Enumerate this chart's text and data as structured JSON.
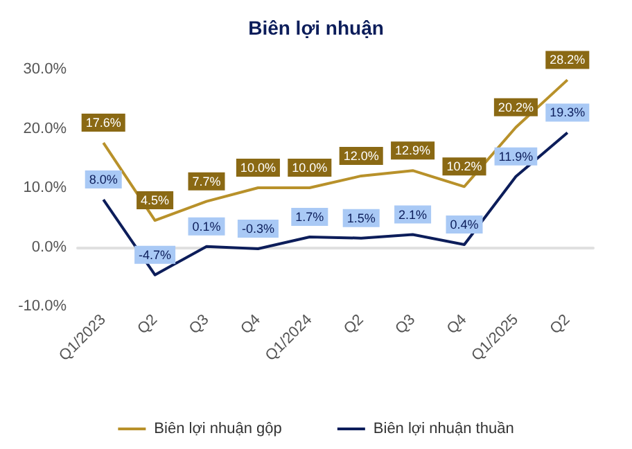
{
  "chart_data": {
    "type": "line",
    "title": "Biên lợi nhuận",
    "categories": [
      "Q1/2023",
      "Q2",
      "Q3",
      "Q4",
      "Q1/2024",
      "Q2",
      "Q3",
      "Q4",
      "Q1/2025",
      "Q2"
    ],
    "series": [
      {
        "name": "Biên lợi nhuận gộp",
        "color": "#b8912a",
        "values": [
          17.6,
          4.5,
          7.7,
          10.0,
          10.0,
          12.0,
          12.9,
          10.2,
          20.2,
          28.2
        ],
        "value_labels": [
          "17.6%",
          "4.5%",
          "7.7%",
          "10.0%",
          "10.0%",
          "12.0%",
          "12.9%",
          "10.2%",
          "20.2%",
          "28.2%"
        ]
      },
      {
        "name": "Biên lợi nhuận thuần",
        "color": "#0c1d5a",
        "values": [
          8.0,
          -4.7,
          0.1,
          -0.3,
          1.7,
          1.5,
          2.1,
          0.4,
          11.9,
          19.3
        ],
        "value_labels": [
          "8.0%",
          "-4.7%",
          "0.1%",
          "-0.3%",
          "1.7%",
          "1.5%",
          "2.1%",
          "0.4%",
          "11.9%",
          "19.3%"
        ]
      }
    ],
    "ylim": [
      -10,
      30
    ],
    "yticks": [
      {
        "value": -10,
        "label": "-10.0%"
      },
      {
        "value": 0,
        "label": "0.0%"
      },
      {
        "value": 10,
        "label": "10.0%"
      },
      {
        "value": 20,
        "label": "20.0%"
      },
      {
        "value": 30,
        "label": "30.0%"
      }
    ],
    "legend": "bottom",
    "marker": "none",
    "line_style": "solid"
  }
}
